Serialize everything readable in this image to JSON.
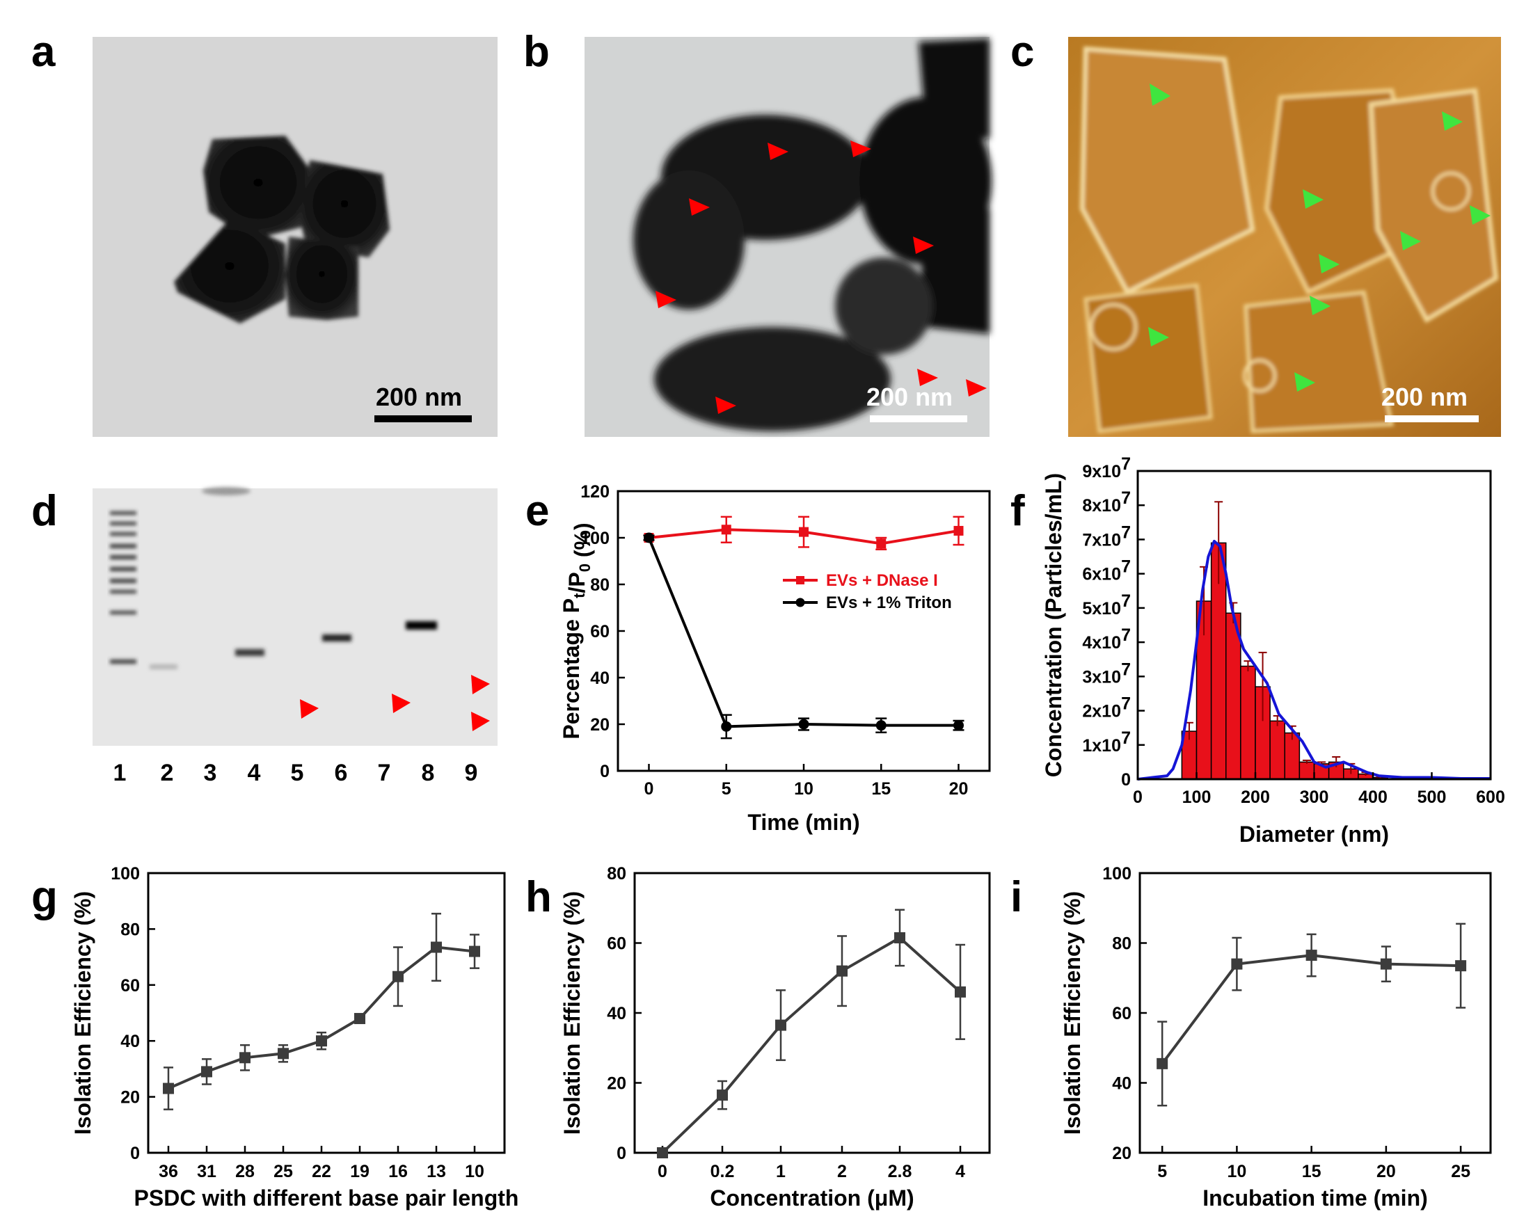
{
  "panels": {
    "a": {
      "label": "a",
      "scale_bar": "200 nm"
    },
    "b": {
      "label": "b",
      "scale_bar": "200 nm"
    },
    "c": {
      "label": "c",
      "scale_bar": "200 nm"
    },
    "d": {
      "label": "d",
      "lanes": [
        "1",
        "2",
        "3",
        "4",
        "5",
        "6",
        "7",
        "8",
        "9"
      ]
    }
  },
  "colors": {
    "red_series": "#e8101a",
    "black_series": "#000000",
    "gray_series": "#3c3c3c",
    "hist_bar": "#e8101a",
    "fit_line": "#1515d6",
    "tem_bg": "#d4d4d4",
    "afm_bg": "#c98a2a",
    "arrow_red": "#ff0000",
    "arrow_green": "#3fe53f"
  },
  "chart_data": [
    {
      "id": "e",
      "panel_label": "e",
      "type": "line",
      "xlabel": "Time (min)",
      "ylabel": "Percentage Pt/P0 (%)",
      "xlim": [
        -2,
        22
      ],
      "ylim": [
        0,
        120
      ],
      "x_ticks": [
        "0",
        "5",
        "10",
        "15",
        "20"
      ],
      "y_ticks": [
        "0",
        "20",
        "40",
        "60",
        "80",
        "100",
        "120"
      ],
      "legend_position": "center-right",
      "series": [
        {
          "name": "EVs + DNase I",
          "x": [
            0,
            5,
            10,
            15,
            20
          ],
          "y": [
            100,
            103.5,
            102.5,
            97.5,
            103
          ],
          "err": [
            1,
            5.5,
            6.5,
            2.5,
            6
          ]
        },
        {
          "name": "EVs + 1% Triton",
          "x": [
            0,
            5,
            10,
            15,
            20
          ],
          "y": [
            100,
            19,
            20,
            19.5,
            19.5
          ],
          "err": [
            1,
            5,
            2.5,
            3,
            2
          ]
        }
      ]
    },
    {
      "id": "f",
      "panel_label": "f",
      "type": "bar",
      "xlabel": "Diameter (nm)",
      "ylabel": "Concentration (Particles/mL)",
      "xlim": [
        0,
        600
      ],
      "ylim": [
        0,
        9
      ],
      "y_unit_exponent": "7",
      "x_ticks": [
        "0",
        "100",
        "200",
        "300",
        "400",
        "500",
        "600"
      ],
      "y_ticks": [
        "0",
        "1x10",
        "2x10",
        "3x10",
        "4x10",
        "5x10",
        "6x10",
        "7x10",
        "8x10",
        "9x10"
      ],
      "bin_width": 25,
      "bin_centers": [
        87.5,
        112.5,
        137.5,
        162.5,
        187.5,
        212.5,
        237.5,
        262.5,
        287.5,
        312.5,
        337.5,
        362.5,
        387.5,
        412.5
      ],
      "values": [
        1.4,
        5.2,
        6.9,
        4.85,
        3.3,
        2.7,
        1.7,
        1.35,
        0.5,
        0.45,
        0.5,
        0.3,
        0.15,
        0.05
      ],
      "errors": [
        0.25,
        1.0,
        1.2,
        0.3,
        0.15,
        1.0,
        0.15,
        0.2,
        0.05,
        0.05,
        0.15,
        0.15,
        0.05,
        0.02
      ],
      "fit_x": [
        0,
        25,
        50,
        60,
        75,
        90,
        100,
        110,
        120,
        130,
        140,
        150,
        160,
        170,
        180,
        200,
        220,
        240,
        260,
        280,
        300,
        320,
        340,
        350,
        370,
        390,
        410,
        450,
        500,
        550,
        600
      ],
      "fit_y": [
        0,
        0.05,
        0.1,
        0.3,
        1.0,
        2.6,
        4.0,
        5.5,
        6.5,
        6.95,
        6.8,
        6.0,
        5.0,
        4.3,
        3.8,
        3.3,
        2.8,
        1.9,
        1.5,
        1.1,
        0.5,
        0.35,
        0.45,
        0.5,
        0.35,
        0.2,
        0.1,
        0.05,
        0.05,
        0.02,
        0.02
      ]
    },
    {
      "id": "g",
      "panel_label": "g",
      "type": "line",
      "xlabel": "PSDC with different base pair length",
      "ylabel": "Isolation Efficiency (%)",
      "categories": [
        "36",
        "31",
        "28",
        "25",
        "22",
        "19",
        "16",
        "13",
        "10"
      ],
      "ylim": [
        0,
        100
      ],
      "y_ticks": [
        "0",
        "20",
        "40",
        "60",
        "80",
        "100"
      ],
      "series": [
        {
          "values": [
            23,
            29,
            34,
            35.5,
            40,
            48,
            63,
            73.5,
            72
          ],
          "err": [
            7.5,
            4.5,
            4.5,
            3,
            3,
            1,
            10.5,
            12,
            6
          ]
        }
      ]
    },
    {
      "id": "h",
      "panel_label": "h",
      "type": "line",
      "xlabel": "Concentration (μM)",
      "ylabel": "Isolation Efficiency (%)",
      "categories": [
        "0",
        "0.2",
        "1",
        "2",
        "2.8",
        "4"
      ],
      "ylim": [
        0,
        80
      ],
      "y_ticks": [
        "0",
        "20",
        "40",
        "60",
        "80"
      ],
      "series": [
        {
          "values": [
            0,
            16.5,
            36.5,
            52,
            61.5,
            46
          ],
          "err": [
            0,
            4,
            10,
            10,
            8,
            13.5
          ]
        }
      ]
    },
    {
      "id": "i",
      "panel_label": "i",
      "type": "line",
      "xlabel": "Incubation time (min)",
      "ylabel": "Isolation Efficiency (%)",
      "x": [
        5,
        10,
        15,
        20,
        25
      ],
      "x_ticks": [
        "5",
        "10",
        "15",
        "20",
        "25"
      ],
      "xlim": [
        3.5,
        27
      ],
      "ylim": [
        20,
        100
      ],
      "y_ticks": [
        "20",
        "40",
        "60",
        "80",
        "100"
      ],
      "series": [
        {
          "values": [
            45.5,
            74,
            76.5,
            74,
            73.5
          ],
          "err": [
            12,
            7.5,
            6,
            5,
            12
          ]
        }
      ]
    }
  ]
}
